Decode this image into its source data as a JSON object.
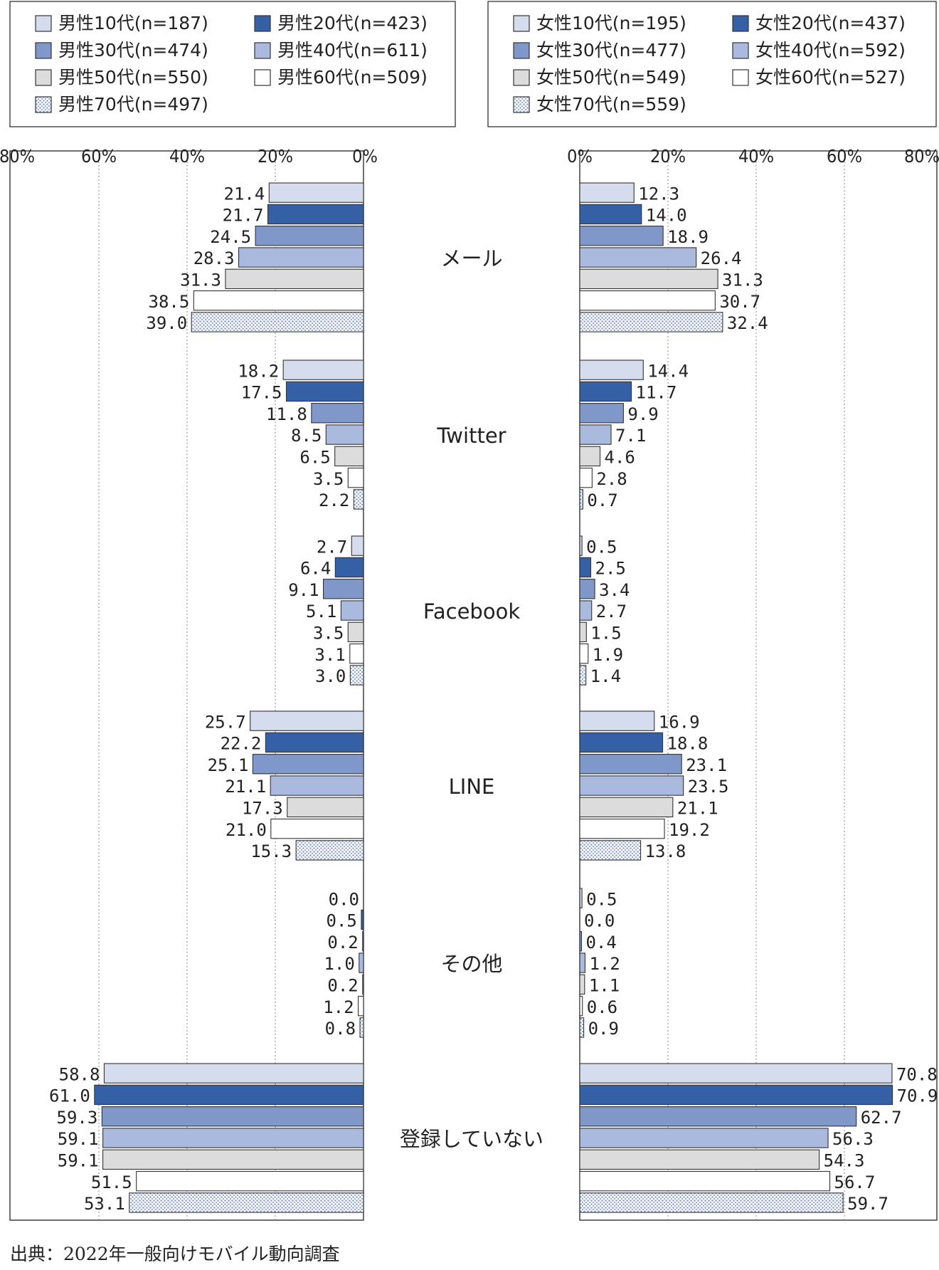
{
  "chart_data": {
    "type": "bar",
    "orientation": "horizontal",
    "layout": "back-to-back",
    "categories": [
      "メール",
      "Twitter",
      "Facebook",
      "LINE",
      "その他",
      "登録していない"
    ],
    "axis_ticks": [
      "80%",
      "60%",
      "40%",
      "20%",
      "0%"
    ],
    "axis_ticks_right": [
      "0%",
      "20%",
      "40%",
      "60%",
      "80%"
    ],
    "xlim": [
      0,
      80
    ],
    "grid": "vertical dotted",
    "panels": [
      {
        "side": "left",
        "legend": [
          "男性10代(n=187)",
          "男性20代(n=423)",
          "男性30代(n=474)",
          "男性40代(n=611)",
          "男性50代(n=550)",
          "男性60代(n=509)",
          "男性70代(n=497)"
        ],
        "series": [
          {
            "name": "男性10代(n=187)",
            "values": [
              21.4,
              18.2,
              2.7,
              25.7,
              0.0,
              58.8
            ]
          },
          {
            "name": "男性20代(n=423)",
            "values": [
              21.7,
              17.5,
              6.4,
              22.2,
              0.5,
              61.0
            ]
          },
          {
            "name": "男性30代(n=474)",
            "values": [
              24.5,
              11.8,
              9.1,
              25.1,
              0.2,
              59.3
            ]
          },
          {
            "name": "男性40代(n=611)",
            "values": [
              28.3,
              8.5,
              5.1,
              21.1,
              1.0,
              59.1
            ]
          },
          {
            "name": "男性50代(n=550)",
            "values": [
              31.3,
              6.5,
              3.5,
              17.3,
              0.2,
              59.1
            ]
          },
          {
            "name": "男性60代(n=509)",
            "values": [
              38.5,
              3.5,
              3.1,
              21.0,
              1.2,
              51.5
            ]
          },
          {
            "name": "男性70代(n=497)",
            "values": [
              39.0,
              2.2,
              3.0,
              15.3,
              0.8,
              53.1
            ]
          }
        ]
      },
      {
        "side": "right",
        "legend": [
          "女性10代(n=195)",
          "女性20代(n=437)",
          "女性30代(n=477)",
          "女性40代(n=592)",
          "女性50代(n=549)",
          "女性60代(n=527)",
          "女性70代(n=559)"
        ],
        "series": [
          {
            "name": "女性10代(n=195)",
            "values": [
              12.3,
              14.4,
              0.5,
              16.9,
              0.5,
              70.8
            ]
          },
          {
            "name": "女性20代(n=437)",
            "values": [
              14.0,
              11.7,
              2.5,
              18.8,
              0.0,
              70.9
            ]
          },
          {
            "name": "女性30代(n=477)",
            "values": [
              18.9,
              9.9,
              3.4,
              23.1,
              0.4,
              62.7
            ]
          },
          {
            "name": "女性40代(n=592)",
            "values": [
              26.4,
              7.1,
              2.7,
              23.5,
              1.2,
              56.3
            ]
          },
          {
            "name": "女性50代(n=549)",
            "values": [
              31.3,
              4.6,
              1.5,
              21.1,
              1.1,
              54.3
            ]
          },
          {
            "name": "女性60代(n=527)",
            "values": [
              30.7,
              2.8,
              1.9,
              19.2,
              0.6,
              56.7
            ]
          },
          {
            "name": "女性70代(n=559)",
            "values": [
              32.4,
              0.7,
              1.4,
              13.8,
              0.9,
              59.7
            ]
          }
        ]
      }
    ]
  },
  "colors": {
    "series": [
      "#d5dced",
      "#3560a6",
      "#8097c9",
      "#aab9de",
      "#dcdcdc",
      "#ffffff",
      "dots"
    ],
    "dot_color": "#8ea3d4",
    "border": "#333333",
    "grid": "#888888"
  },
  "source_text": "出典：2022年一般向けモバイル動向調査"
}
